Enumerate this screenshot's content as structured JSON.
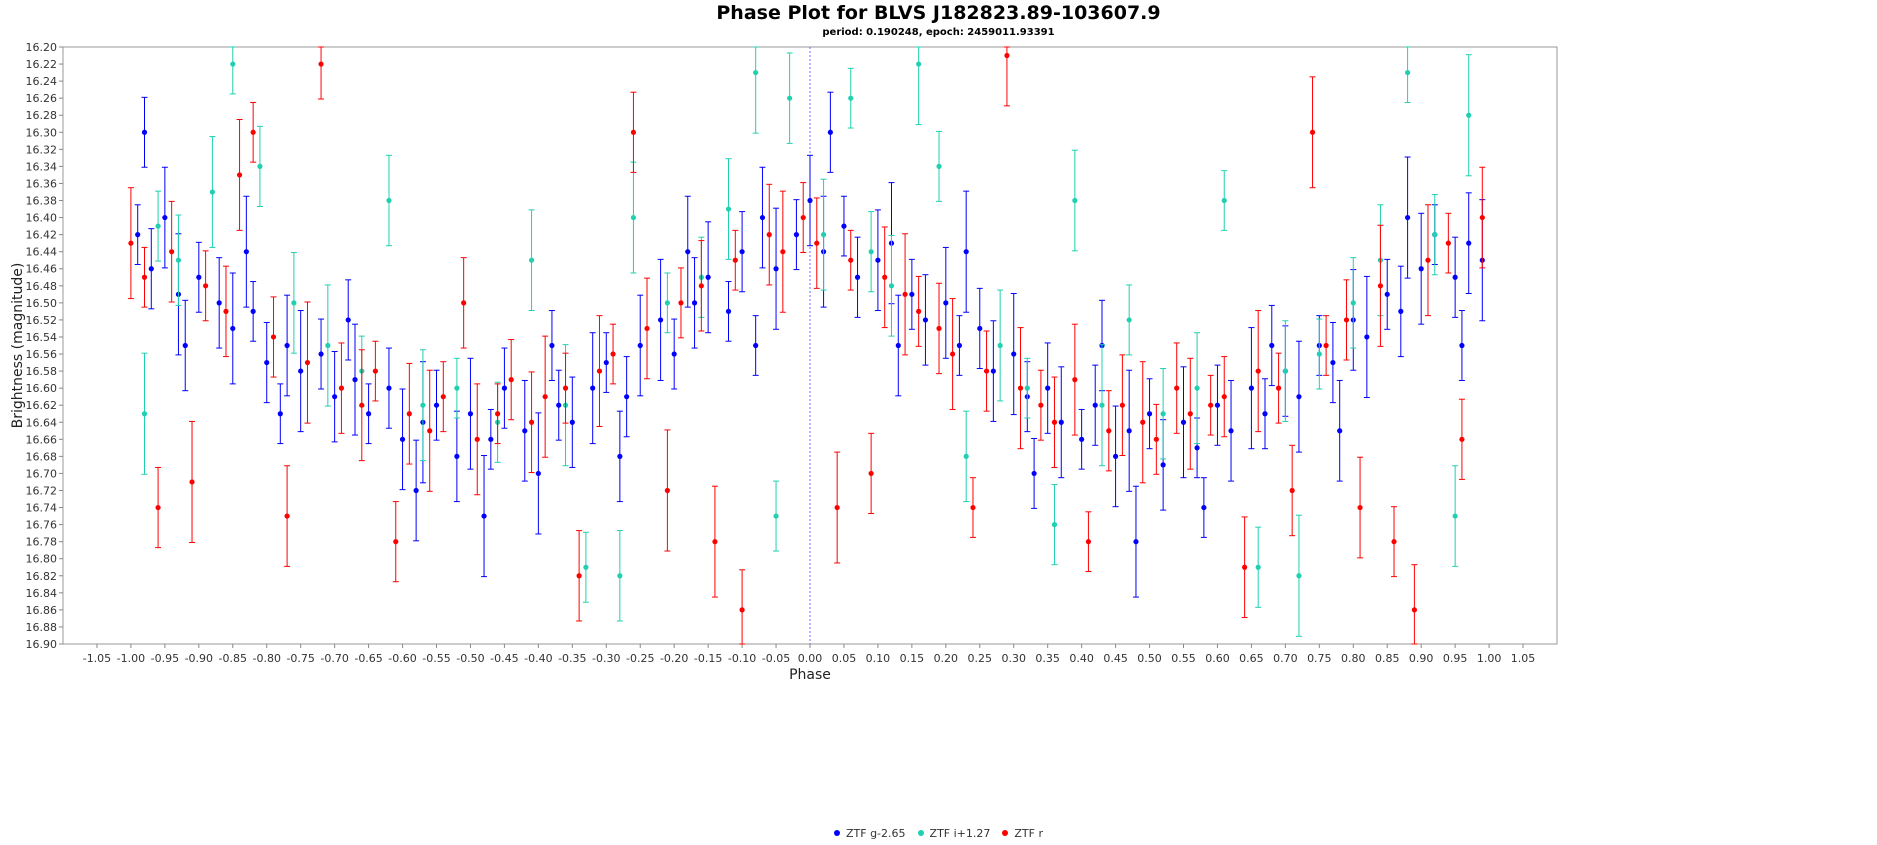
{
  "chart_data": {
    "type": "scatter",
    "title": "Phase Plot for BLVS J182823.89-103607.9",
    "subtitle": "period: 0.190248, epoch: 2459011.93391",
    "xlabel": "Phase",
    "ylabel": "Brightness (magnitude)",
    "xlim": [
      -1.1,
      1.1
    ],
    "ylim": [
      16.9,
      16.2
    ],
    "y_inverted": true,
    "grid": false,
    "legend_position": "bottom-center",
    "x_ticks": [
      "-1.05",
      "-1.00",
      "-0.95",
      "-0.90",
      "-0.85",
      "-0.80",
      "-0.75",
      "-0.70",
      "-0.65",
      "-0.60",
      "-0.55",
      "-0.50",
      "-0.45",
      "-0.40",
      "-0.35",
      "-0.30",
      "-0.25",
      "-0.20",
      "-0.15",
      "-0.10",
      "-0.05",
      "0.00",
      "0.05",
      "0.10",
      "0.15",
      "0.20",
      "0.25",
      "0.30",
      "0.35",
      "0.40",
      "0.45",
      "0.50",
      "0.55",
      "0.60",
      "0.65",
      "0.70",
      "0.75",
      "0.80",
      "0.85",
      "0.90",
      "0.95",
      "1.00",
      "1.05"
    ],
    "y_ticks": [
      "16.20",
      "16.22",
      "16.24",
      "16.26",
      "16.28",
      "16.30",
      "16.32",
      "16.34",
      "16.36",
      "16.38",
      "16.40",
      "16.42",
      "16.44",
      "16.46",
      "16.48",
      "16.50",
      "16.52",
      "16.54",
      "16.56",
      "16.58",
      "16.60",
      "16.62",
      "16.64",
      "16.66",
      "16.68",
      "16.70",
      "16.72",
      "16.74",
      "16.76",
      "16.78",
      "16.80",
      "16.82",
      "16.84",
      "16.86",
      "16.88",
      "16.90"
    ],
    "reference_line_x": 0.0,
    "series": [
      {
        "name": "ZTF g-2.65",
        "color": "#0000ff",
        "points": [
          [
            -0.99,
            16.42
          ],
          [
            -0.97,
            16.46
          ],
          [
            -0.95,
            16.4
          ],
          [
            -0.93,
            16.49
          ],
          [
            -0.9,
            16.47
          ],
          [
            -0.87,
            16.5
          ],
          [
            -0.85,
            16.53
          ],
          [
            -0.82,
            16.51
          ],
          [
            -0.8,
            16.57
          ],
          [
            -0.77,
            16.55
          ],
          [
            -0.75,
            16.58
          ],
          [
            -0.72,
            16.56
          ],
          [
            -0.7,
            16.61
          ],
          [
            -0.67,
            16.59
          ],
          [
            -0.65,
            16.63
          ],
          [
            -0.62,
            16.6
          ],
          [
            -0.6,
            16.66
          ],
          [
            -0.57,
            16.64
          ],
          [
            -0.55,
            16.62
          ],
          [
            -0.52,
            16.68
          ],
          [
            -0.5,
            16.63
          ],
          [
            -0.47,
            16.66
          ],
          [
            -0.45,
            16.6
          ],
          [
            -0.42,
            16.65
          ],
          [
            -0.4,
            16.7
          ],
          [
            -0.37,
            16.62
          ],
          [
            -0.35,
            16.64
          ],
          [
            -0.32,
            16.6
          ],
          [
            -0.3,
            16.57
          ],
          [
            -0.27,
            16.61
          ],
          [
            -0.25,
            16.55
          ],
          [
            -0.22,
            16.52
          ],
          [
            -0.2,
            16.56
          ],
          [
            -0.17,
            16.5
          ],
          [
            -0.15,
            16.47
          ],
          [
            -0.12,
            16.51
          ],
          [
            -0.1,
            16.44
          ],
          [
            -0.07,
            16.4
          ],
          [
            -0.05,
            16.46
          ],
          [
            -0.02,
            16.42
          ],
          [
            0.0,
            16.38
          ],
          [
            0.02,
            16.44
          ],
          [
            0.05,
            16.41
          ],
          [
            0.07,
            16.47
          ],
          [
            0.1,
            16.45
          ],
          [
            0.12,
            16.43
          ],
          [
            0.15,
            16.49
          ],
          [
            0.17,
            16.52
          ],
          [
            0.2,
            16.5
          ],
          [
            0.22,
            16.55
          ],
          [
            0.25,
            16.53
          ],
          [
            0.27,
            16.58
          ],
          [
            0.3,
            16.56
          ],
          [
            0.32,
            16.61
          ],
          [
            0.35,
            16.6
          ],
          [
            0.37,
            16.64
          ],
          [
            0.4,
            16.66
          ],
          [
            0.42,
            16.62
          ],
          [
            0.45,
            16.68
          ],
          [
            0.47,
            16.65
          ],
          [
            0.5,
            16.63
          ],
          [
            0.52,
            16.69
          ],
          [
            0.55,
            16.64
          ],
          [
            0.57,
            16.67
          ],
          [
            0.6,
            16.62
          ],
          [
            0.62,
            16.65
          ],
          [
            0.65,
            16.6
          ],
          [
            0.67,
            16.63
          ],
          [
            0.7,
            16.58
          ],
          [
            0.72,
            16.61
          ],
          [
            0.75,
            16.55
          ],
          [
            0.77,
            16.57
          ],
          [
            0.8,
            16.52
          ],
          [
            0.82,
            16.54
          ],
          [
            0.85,
            16.49
          ],
          [
            0.87,
            16.51
          ],
          [
            0.9,
            16.46
          ],
          [
            0.92,
            16.42
          ],
          [
            0.95,
            16.47
          ],
          [
            0.97,
            16.43
          ],
          [
            0.99,
            16.45
          ],
          [
            -0.98,
            16.3
          ],
          [
            -0.92,
            16.55
          ],
          [
            -0.83,
            16.44
          ],
          [
            -0.78,
            16.63
          ],
          [
            -0.68,
            16.52
          ],
          [
            -0.58,
            16.72
          ],
          [
            -0.48,
            16.75
          ],
          [
            -0.38,
            16.55
          ],
          [
            -0.28,
            16.68
          ],
          [
            -0.18,
            16.44
          ],
          [
            -0.08,
            16.55
          ],
          [
            0.03,
            16.3
          ],
          [
            0.13,
            16.55
          ],
          [
            0.23,
            16.44
          ],
          [
            0.33,
            16.7
          ],
          [
            0.43,
            16.55
          ],
          [
            0.48,
            16.78
          ],
          [
            0.58,
            16.74
          ],
          [
            0.68,
            16.55
          ],
          [
            0.78,
            16.65
          ],
          [
            0.88,
            16.4
          ],
          [
            0.96,
            16.55
          ]
        ]
      },
      {
        "name": "ZTF i+1.27",
        "color": "#20d0b0",
        "points": [
          [
            -0.98,
            16.63
          ],
          [
            -0.96,
            16.41
          ],
          [
            -0.93,
            16.45
          ],
          [
            -0.88,
            16.37
          ],
          [
            -0.85,
            16.22
          ],
          [
            -0.81,
            16.34
          ],
          [
            -0.76,
            16.5
          ],
          [
            -0.71,
            16.55
          ],
          [
            -0.66,
            16.58
          ],
          [
            -0.62,
            16.38
          ],
          [
            -0.57,
            16.62
          ],
          [
            -0.52,
            16.6
          ],
          [
            -0.46,
            16.64
          ],
          [
            -0.41,
            16.45
          ],
          [
            -0.36,
            16.62
          ],
          [
            -0.33,
            16.81
          ],
          [
            -0.28,
            16.82
          ],
          [
            -0.26,
            16.4
          ],
          [
            -0.21,
            16.5
          ],
          [
            -0.16,
            16.47
          ],
          [
            -0.12,
            16.39
          ],
          [
            -0.08,
            16.23
          ],
          [
            -0.05,
            16.75
          ],
          [
            -0.03,
            16.26
          ],
          [
            0.02,
            16.42
          ],
          [
            0.06,
            16.26
          ],
          [
            0.09,
            16.44
          ],
          [
            0.12,
            16.48
          ],
          [
            0.16,
            16.22
          ],
          [
            0.19,
            16.34
          ],
          [
            0.23,
            16.68
          ],
          [
            0.28,
            16.55
          ],
          [
            0.32,
            16.6
          ],
          [
            0.36,
            16.76
          ],
          [
            0.39,
            16.38
          ],
          [
            0.43,
            16.62
          ],
          [
            0.47,
            16.52
          ],
          [
            0.52,
            16.63
          ],
          [
            0.57,
            16.6
          ],
          [
            0.61,
            16.38
          ],
          [
            0.66,
            16.81
          ],
          [
            0.7,
            16.58
          ],
          [
            0.72,
            16.82
          ],
          [
            0.75,
            16.56
          ],
          [
            0.8,
            16.5
          ],
          [
            0.84,
            16.45
          ],
          [
            0.88,
            16.23
          ],
          [
            0.92,
            16.42
          ],
          [
            0.95,
            16.75
          ],
          [
            0.97,
            16.28
          ]
        ]
      },
      {
        "name": "ZTF r",
        "color": "#ff0000",
        "points": [
          [
            -1.0,
            16.43
          ],
          [
            -0.98,
            16.47
          ],
          [
            -0.96,
            16.74
          ],
          [
            -0.94,
            16.44
          ],
          [
            -0.91,
            16.71
          ],
          [
            -0.89,
            16.48
          ],
          [
            -0.86,
            16.51
          ],
          [
            -0.84,
            16.35
          ],
          [
            -0.82,
            16.3
          ],
          [
            -0.79,
            16.54
          ],
          [
            -0.77,
            16.75
          ],
          [
            -0.74,
            16.57
          ],
          [
            -0.72,
            16.22
          ],
          [
            -0.69,
            16.6
          ],
          [
            -0.66,
            16.62
          ],
          [
            -0.64,
            16.58
          ],
          [
            -0.61,
            16.78
          ],
          [
            -0.59,
            16.63
          ],
          [
            -0.56,
            16.65
          ],
          [
            -0.54,
            16.61
          ],
          [
            -0.51,
            16.5
          ],
          [
            -0.49,
            16.66
          ],
          [
            -0.46,
            16.63
          ],
          [
            -0.44,
            16.59
          ],
          [
            -0.41,
            16.64
          ],
          [
            -0.39,
            16.61
          ],
          [
            -0.36,
            16.6
          ],
          [
            -0.34,
            16.82
          ],
          [
            -0.31,
            16.58
          ],
          [
            -0.29,
            16.56
          ],
          [
            -0.26,
            16.3
          ],
          [
            -0.24,
            16.53
          ],
          [
            -0.21,
            16.72
          ],
          [
            -0.19,
            16.5
          ],
          [
            -0.16,
            16.48
          ],
          [
            -0.14,
            16.78
          ],
          [
            -0.11,
            16.45
          ],
          [
            -0.1,
            16.86
          ],
          [
            -0.06,
            16.42
          ],
          [
            -0.04,
            16.44
          ],
          [
            -0.01,
            16.4
          ],
          [
            0.01,
            16.43
          ],
          [
            0.04,
            16.74
          ],
          [
            0.06,
            16.45
          ],
          [
            0.09,
            16.7
          ],
          [
            0.11,
            16.47
          ],
          [
            0.14,
            16.49
          ],
          [
            0.16,
            16.51
          ],
          [
            0.19,
            16.53
          ],
          [
            0.21,
            16.56
          ],
          [
            0.24,
            16.74
          ],
          [
            0.26,
            16.58
          ],
          [
            0.29,
            16.21
          ],
          [
            0.31,
            16.6
          ],
          [
            0.34,
            16.62
          ],
          [
            0.36,
            16.64
          ],
          [
            0.39,
            16.59
          ],
          [
            0.41,
            16.78
          ],
          [
            0.44,
            16.65
          ],
          [
            0.46,
            16.62
          ],
          [
            0.49,
            16.64
          ],
          [
            0.51,
            16.66
          ],
          [
            0.54,
            16.6
          ],
          [
            0.56,
            16.63
          ],
          [
            0.59,
            16.62
          ],
          [
            0.61,
            16.61
          ],
          [
            0.64,
            16.81
          ],
          [
            0.66,
            16.58
          ],
          [
            0.69,
            16.6
          ],
          [
            0.71,
            16.72
          ],
          [
            0.74,
            16.3
          ],
          [
            0.76,
            16.55
          ],
          [
            0.79,
            16.52
          ],
          [
            0.81,
            16.74
          ],
          [
            0.84,
            16.48
          ],
          [
            0.86,
            16.78
          ],
          [
            0.89,
            16.86
          ],
          [
            0.91,
            16.45
          ],
          [
            0.94,
            16.43
          ],
          [
            0.96,
            16.66
          ],
          [
            0.99,
            16.4
          ]
        ]
      }
    ]
  }
}
